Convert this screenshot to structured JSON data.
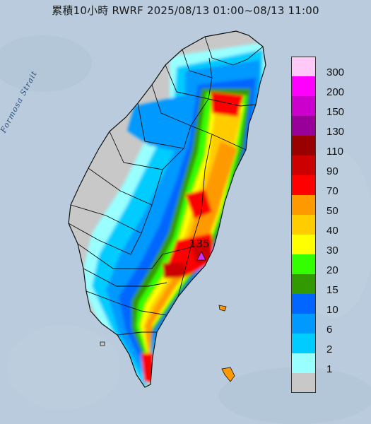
{
  "title": "累積10小時 RWRF 2025/08/13 01:00~08/13 11:00",
  "strait_label": "Formosa Strait",
  "max_value_label": "135",
  "legend": [
    {
      "label": "300",
      "color": "#ffc9f7"
    },
    {
      "label": "200",
      "color": "#ff00ff"
    },
    {
      "label": "150",
      "color": "#cc00cc"
    },
    {
      "label": "130",
      "color": "#990099"
    },
    {
      "label": "110",
      "color": "#990000"
    },
    {
      "label": "90",
      "color": "#cc0000"
    },
    {
      "label": "70",
      "color": "#ff0000"
    },
    {
      "label": "50",
      "color": "#ff9900"
    },
    {
      "label": "40",
      "color": "#ffcc00"
    },
    {
      "label": "30",
      "color": "#ffff00"
    },
    {
      "label": "20",
      "color": "#33ff00"
    },
    {
      "label": "15",
      "color": "#339900"
    },
    {
      "label": "10",
      "color": "#0066ff"
    },
    {
      "label": "6",
      "color": "#0099ff"
    },
    {
      "label": "2",
      "color": "#00ccff"
    },
    {
      "label": "1",
      "color": "#99ffff"
    },
    {
      "label": "",
      "color": "#c8c8c8"
    }
  ],
  "colors": {
    "sea": "#b9cbdc",
    "land_no_rain": "#c8c8c8",
    "boundary": "#111111",
    "max_marker": "#cc33ff"
  }
}
